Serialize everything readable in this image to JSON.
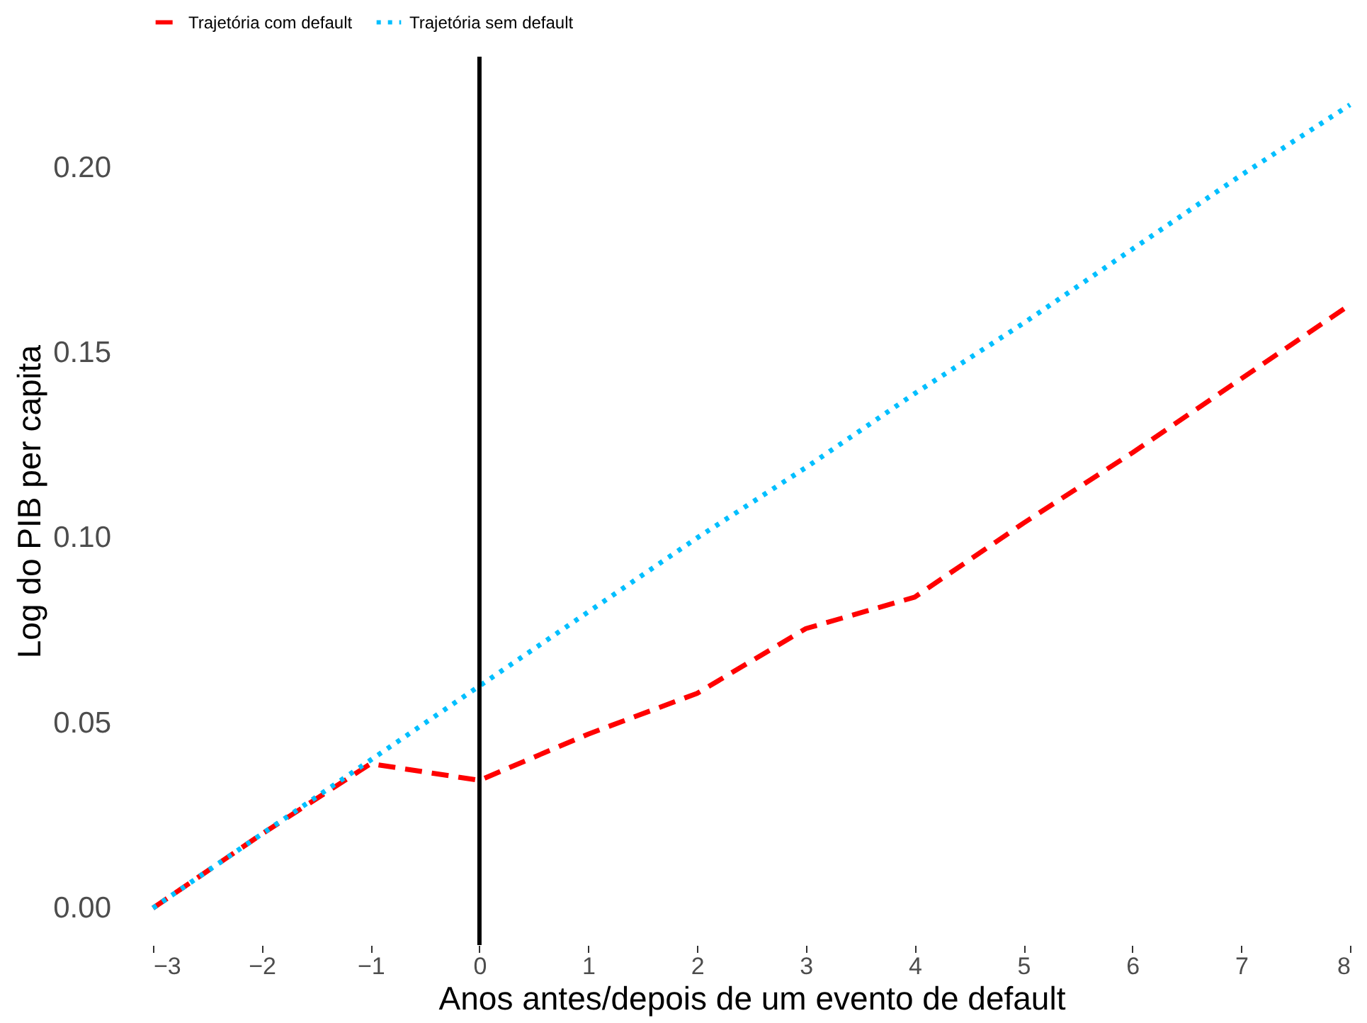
{
  "chart_data": {
    "type": "line",
    "xlabel": "Anos antes/depois de um evento de default",
    "ylabel": "Log do PIB per capita",
    "x": [
      -3,
      -2,
      -1,
      0,
      1,
      2,
      3,
      4,
      5,
      6,
      7,
      8
    ],
    "series": [
      {
        "name": "Trajetória com default",
        "color": "#ff0000",
        "line_style": "dashed",
        "values": [
          0.0,
          0.02,
          0.039,
          0.0345,
          0.047,
          0.058,
          0.0755,
          0.084,
          0.104,
          0.123,
          0.143,
          0.163
        ]
      },
      {
        "name": "Trajetória sem default",
        "color": "#00bfff",
        "line_style": "dotted",
        "values": [
          0.0,
          0.02,
          0.04,
          0.06,
          0.08,
          0.1,
          0.119,
          0.139,
          0.158,
          0.178,
          0.198,
          0.217
        ]
      }
    ],
    "xlim": [
      -3,
      8
    ],
    "xticks": [
      -3,
      -2,
      -1,
      0,
      1,
      2,
      3,
      4,
      5,
      6,
      7,
      8
    ],
    "ylim": [
      -0.01,
      0.23
    ],
    "yticks": [
      {
        "value": 0,
        "label": "0.00"
      },
      {
        "value": 0.05,
        "label": "0.05"
      },
      {
        "value": 0.1,
        "label": "0.10"
      },
      {
        "value": 0.15,
        "label": "0.15"
      },
      {
        "value": 0.2,
        "label": "0.20"
      }
    ],
    "ref_lines": [
      {
        "axis": "x",
        "value": 0,
        "color": "#000000",
        "line_style": "solid"
      }
    ],
    "grid": false,
    "legend": "top",
    "marker": "none"
  }
}
